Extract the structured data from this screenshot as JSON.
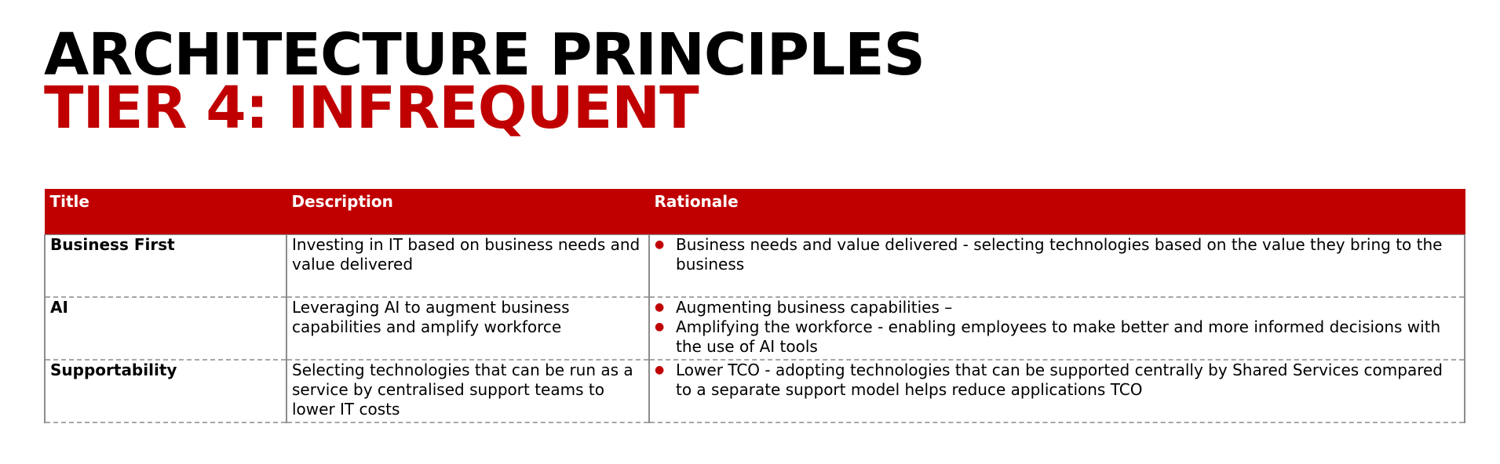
{
  "heading": {
    "line1": "ARCHITECTURE PRINCIPLES",
    "line2": "TIER 4: INFREQUENT"
  },
  "colors": {
    "accent": "#c00000",
    "header_text": "#ffffff",
    "border": "#8c8c8c"
  },
  "table": {
    "columns": [
      "Title",
      "Description",
      "Rationale"
    ],
    "rows": [
      {
        "title": "Business First",
        "description": "Investing in IT based on business needs and value delivered",
        "rationale": [
          "Business needs and value delivered - selecting technologies based on the value they bring to the business"
        ]
      },
      {
        "title": "AI",
        "description": "Leveraging AI to augment business capabilities and amplify workforce",
        "rationale": [
          "Augmenting business capabilities –",
          "Amplifying the workforce - enabling employees to make better and more informed decisions with the use of AI tools"
        ]
      },
      {
        "title": "Supportability",
        "description": "Selecting technologies that can be run as a service by centralised support teams to lower IT costs",
        "rationale": [
          "Lower TCO - adopting technologies that can be supported centrally by Shared Services compared to a separate support model helps reduce applications TCO"
        ]
      }
    ]
  }
}
